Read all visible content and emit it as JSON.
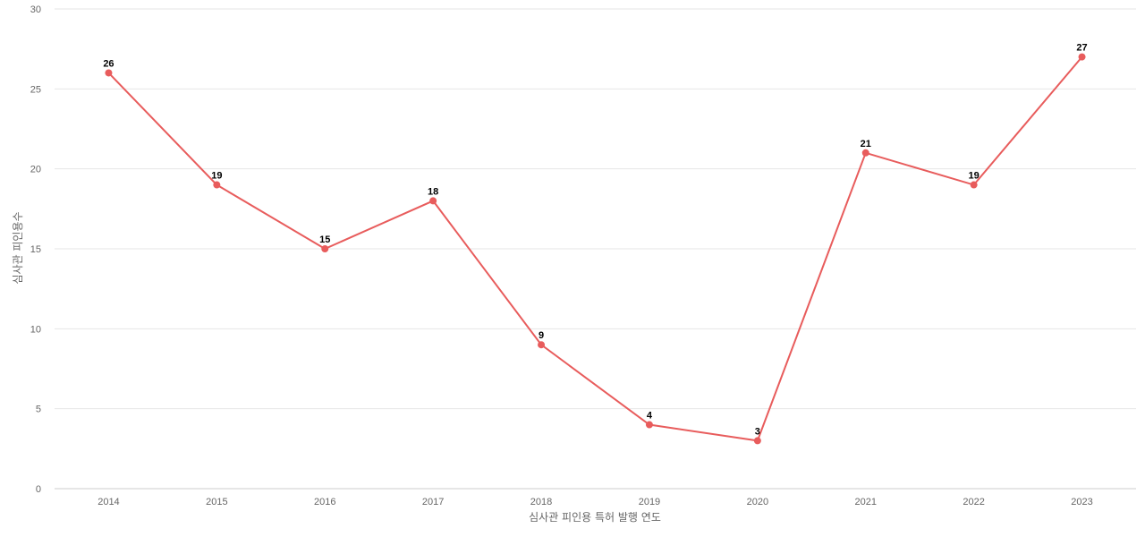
{
  "chart_data": {
    "type": "line",
    "title": "",
    "xlabel": "심사관 피인용 특허 발행 연도",
    "ylabel": "심사관 피인용수",
    "categories": [
      "2014",
      "2015",
      "2016",
      "2017",
      "2018",
      "2019",
      "2020",
      "2021",
      "2022",
      "2023"
    ],
    "series": [
      {
        "values": [
          26,
          19,
          15,
          18,
          9,
          4,
          3,
          21,
          19,
          27
        ],
        "color": "#e85c5c"
      }
    ],
    "ylim": [
      0,
      30
    ],
    "yticks": [
      0,
      5,
      10,
      15,
      20,
      25,
      30
    ],
    "grid": true,
    "data_labels": true
  }
}
